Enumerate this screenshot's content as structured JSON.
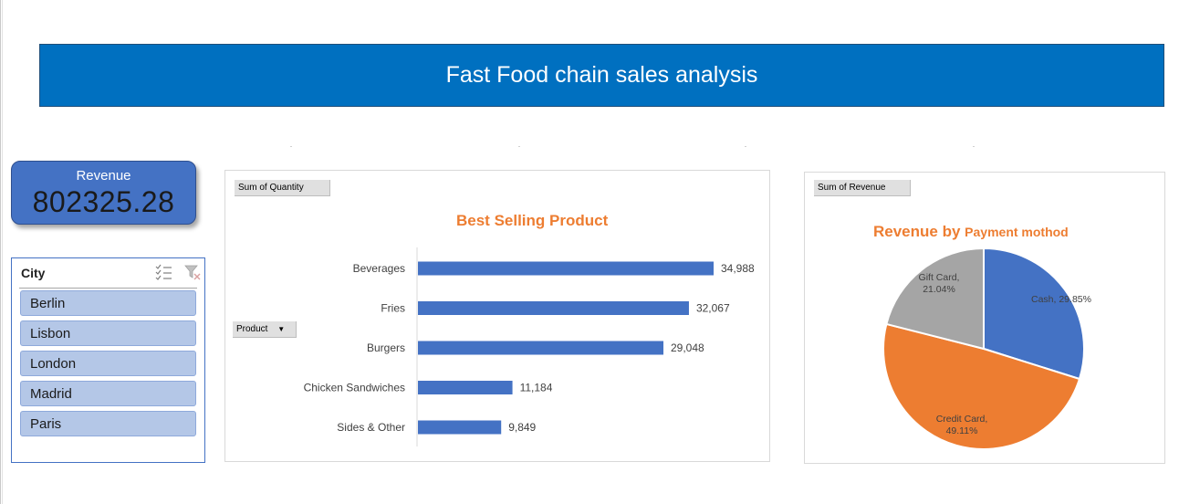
{
  "header": {
    "title": "Fast Food chain sales analysis"
  },
  "kpi": {
    "label": "Revenue",
    "value": "802325.28"
  },
  "slicer": {
    "title": "City",
    "icons": [
      "multi-select-icon",
      "clear-filter-icon"
    ],
    "items": [
      "Berlin",
      "Lisbon",
      "London",
      "Madrid",
      "Paris"
    ]
  },
  "bar_panel": {
    "value_field": "Sum of Quantity",
    "axis_field": "Product",
    "axis_field_arrow": "▼"
  },
  "pie_panel": {
    "value_field": "Sum of Revenue",
    "title_main": "Revenue by",
    "title_sub": "Payment mothod"
  },
  "colors": {
    "banner": "#0070c0",
    "bar": "#4472c4",
    "cash": "#4472c4",
    "credit": "#ed7d31",
    "gift": "#a5a5a5",
    "title": "#ed7d31"
  },
  "chart_data": [
    {
      "type": "bar",
      "orientation": "horizontal",
      "title": "Best Selling Product",
      "categories": [
        "Beverages",
        "Fries",
        "Burgers",
        "Chicken Sandwiches",
        "Sides & Other"
      ],
      "values": [
        34988,
        32067,
        29048,
        11184,
        9849
      ],
      "value_labels": [
        "34,988",
        "32,067",
        "29,048",
        "11,184",
        "9,849"
      ],
      "grid": false
    },
    {
      "type": "pie",
      "title": "Revenue by Payment mothod",
      "slices": [
        {
          "label": "Cash",
          "value": 29.85,
          "text": "Cash, 29.85%"
        },
        {
          "label": "Credit Card",
          "value": 49.11,
          "text": [
            "Credit Card,",
            "49.11%"
          ]
        },
        {
          "label": "Gift Card",
          "value": 21.04,
          "text": [
            "Gift Card,",
            "21.04%"
          ]
        }
      ]
    }
  ]
}
